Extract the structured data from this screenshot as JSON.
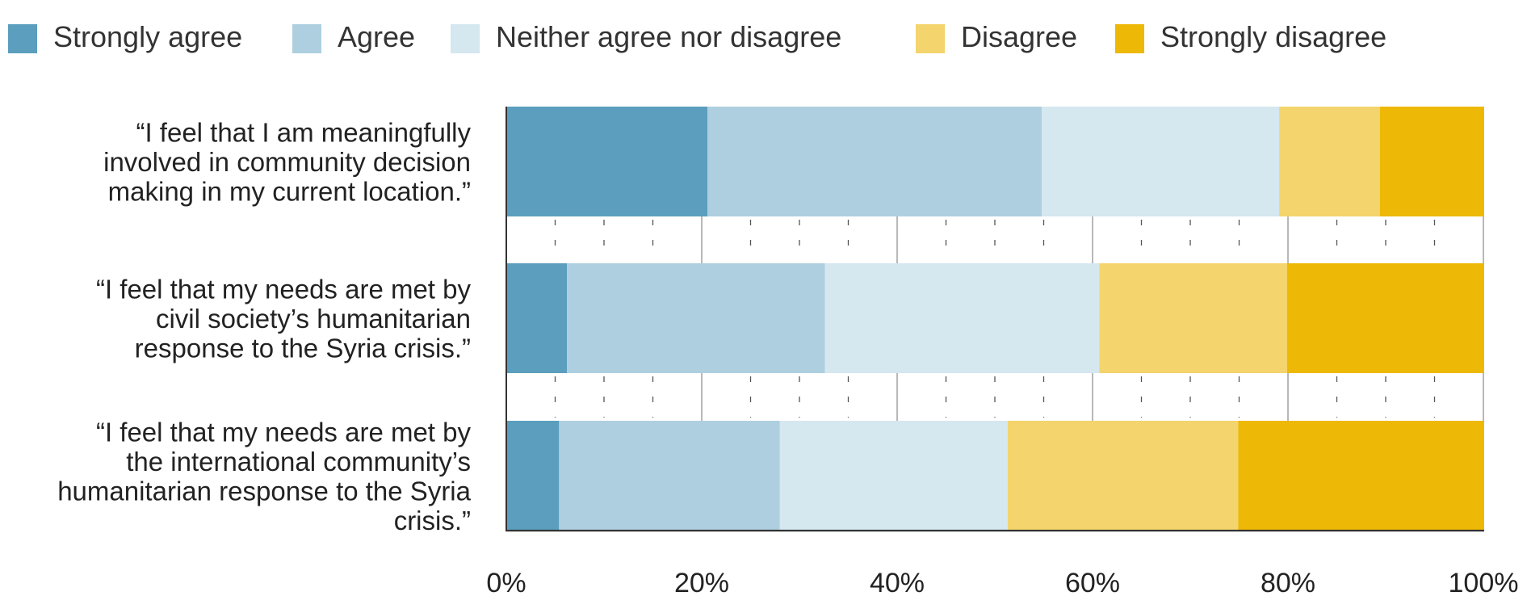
{
  "chart_data": {
    "type": "bar",
    "orientation": "horizontal",
    "stacked": true,
    "categories": [
      "“I feel that I am meaningfully involved in community decision making in my current location.”",
      "“I feel that my needs are met by civil society’s humanitarian response to the Syria crisis.”",
      "“I feel that my needs are met by the international community’s humanitarian response to the Syria crisis.”"
    ],
    "category_lines": [
      [
        "“I feel that I am meaningfully",
        "involved in community decision",
        "making in my current location.”"
      ],
      [
        "“I feel that my needs are met by",
        "civil society’s humanitarian",
        "response to the Syria crisis.”"
      ],
      [
        "“I feel that my needs are met by",
        "the international community’s",
        "humanitarian response to the Syria",
        "crisis.”"
      ]
    ],
    "series": [
      {
        "name": "Strongly agree",
        "color": "#5b9ebd",
        "values": [
          20.6,
          6.2,
          5.4
        ]
      },
      {
        "name": "Agree",
        "color": "#aecfdf",
        "values": [
          34.2,
          26.4,
          22.6
        ]
      },
      {
        "name": "Neither agree nor disagree",
        "color": "#d5e7ef",
        "values": [
          24.3,
          28.1,
          23.3
        ]
      },
      {
        "name": "Disagree",
        "color": "#f4d46c",
        "values": [
          10.3,
          19.2,
          23.6
        ]
      },
      {
        "name": "Strongly disagree",
        "color": "#edb806",
        "values": [
          10.6,
          20.1,
          25.1
        ]
      }
    ],
    "xlim": [
      0,
      100
    ],
    "xticks": [
      0,
      20,
      40,
      60,
      80,
      100
    ],
    "xtick_labels": [
      "0%",
      "20%",
      "40%",
      "60%",
      "80%",
      "100%"
    ],
    "legend_position": "top"
  }
}
